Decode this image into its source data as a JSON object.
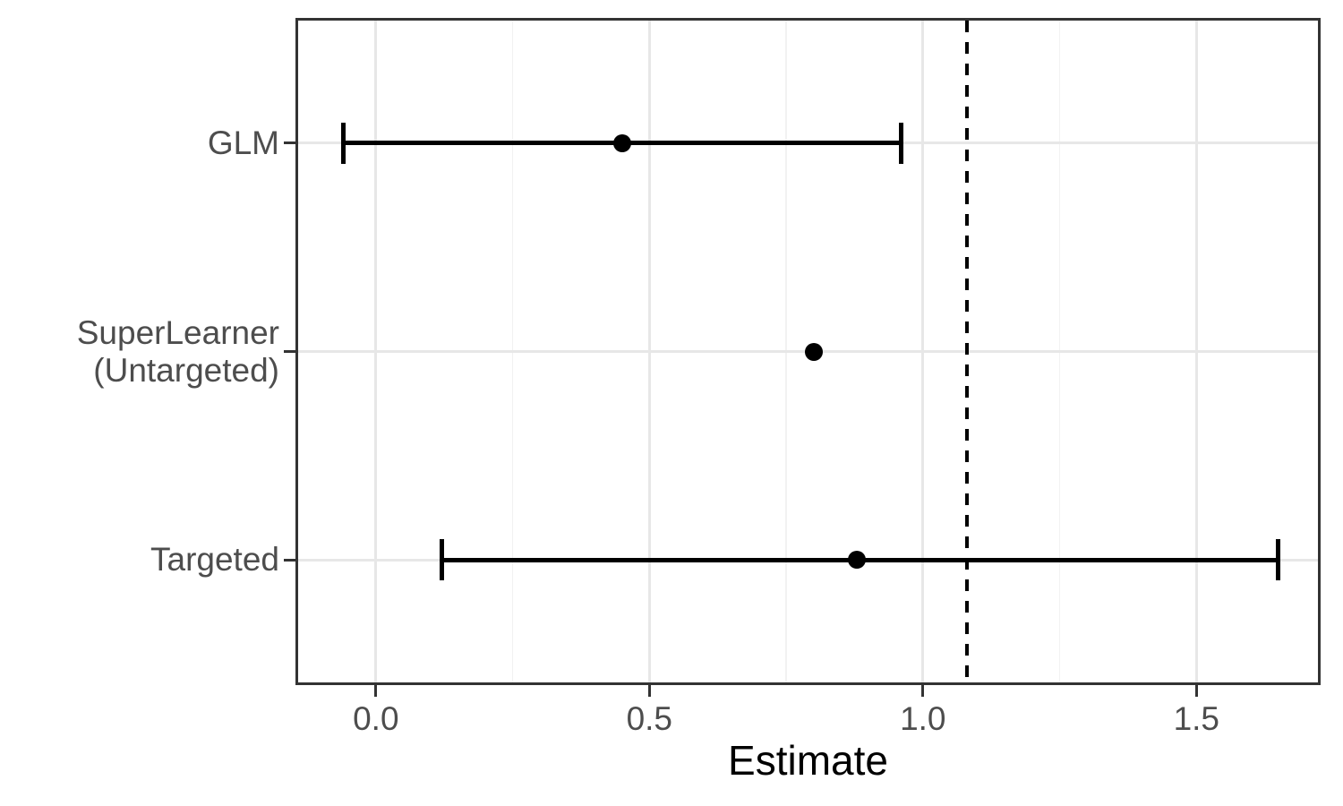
{
  "style": {
    "background": "#ffffff",
    "panel_border": "#333333",
    "grid_major": "#e7e7e7",
    "grid_minor": "#f2f2f2",
    "axis_text": "#4d4d4d",
    "tick": "#333333",
    "data": "#000000"
  },
  "chart_data": {
    "type": "scatter",
    "subtype": "forest-pointrange",
    "title": "",
    "xlabel": "Estimate",
    "ylabel": "",
    "grid": true,
    "legend": "none",
    "x_axis": {
      "limits": [
        -0.147,
        1.727
      ],
      "ticks": [
        0.0,
        0.5,
        1.0,
        1.5
      ],
      "tick_labels": [
        "0.0",
        "0.5",
        "1.0",
        "1.5"
      ],
      "minor_ticks": [
        0.25,
        0.75,
        1.25
      ]
    },
    "rows": [
      {
        "label_lines": [
          "GLM"
        ],
        "estimate": 0.45,
        "ci_lower": -0.06,
        "ci_upper": 0.96
      },
      {
        "label_lines": [
          "SuperLearner",
          "(Untargeted)"
        ],
        "estimate": 0.8,
        "ci_lower": null,
        "ci_upper": null
      },
      {
        "label_lines": [
          "Targeted"
        ],
        "estimate": 0.88,
        "ci_lower": 0.12,
        "ci_upper": 1.65
      }
    ],
    "reference_line": {
      "value": 1.08,
      "style": "dashed",
      "color": "#000000"
    }
  }
}
